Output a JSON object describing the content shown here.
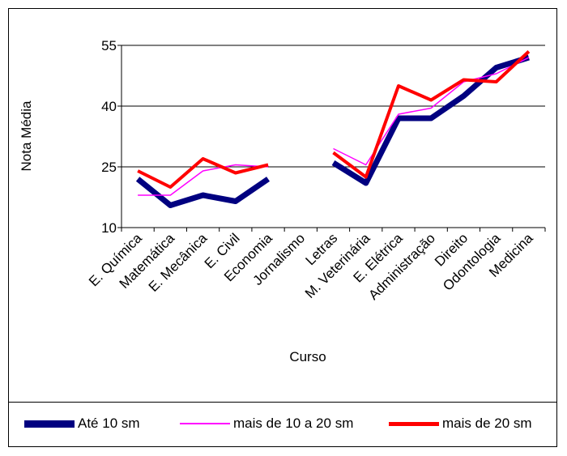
{
  "chart_data": {
    "type": "line",
    "title": "",
    "xlabel": "Curso",
    "ylabel": "Nota Média",
    "ylim": [
      10,
      55
    ],
    "yticks": [
      10,
      25,
      40,
      55
    ],
    "grid": "horizontal",
    "legend_position": "bottom",
    "categories": [
      "E. Química",
      "Matemática",
      "E. Mecânica",
      "E. Civil",
      "Economia",
      "Jornalismo",
      "Letras",
      "M. Veterinária",
      "E. Elétrica",
      "Administração",
      "Direito",
      "Odontologia",
      "Medicina"
    ],
    "series": [
      {
        "name": "Até 10 sm",
        "color": "#000080",
        "values": [
          22,
          15.5,
          18,
          16.5,
          22,
          null,
          26,
          21,
          37,
          37,
          42.5,
          49.5,
          52
        ]
      },
      {
        "name": "mais de 10 a 20 sm",
        "color": "#ff00ff",
        "values": [
          18,
          18,
          24,
          25.5,
          25,
          null,
          29.5,
          25.5,
          38,
          39.5,
          46,
          48,
          52
        ]
      },
      {
        "name": "mais de 20 sm",
        "color": "#ff0000",
        "values": [
          24,
          20,
          27,
          23.5,
          25.5,
          null,
          28.5,
          22.5,
          45,
          41.5,
          46.5,
          46,
          53.5
        ]
      }
    ]
  }
}
